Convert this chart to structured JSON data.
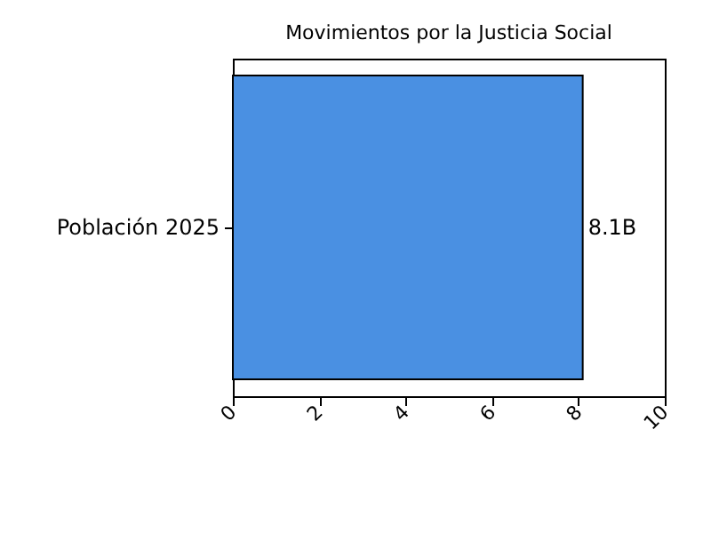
{
  "chart_data": {
    "type": "bar",
    "orientation": "horizontal",
    "title": "Movimientos por la Justicia Social",
    "categories": [
      "Población 2025"
    ],
    "values": [
      8.1
    ],
    "value_labels": [
      "8.1B"
    ],
    "color": "#4a90e2",
    "xlim": [
      0,
      10
    ],
    "xticks": [
      0,
      2,
      4,
      6,
      8,
      10
    ],
    "grid": false
  }
}
